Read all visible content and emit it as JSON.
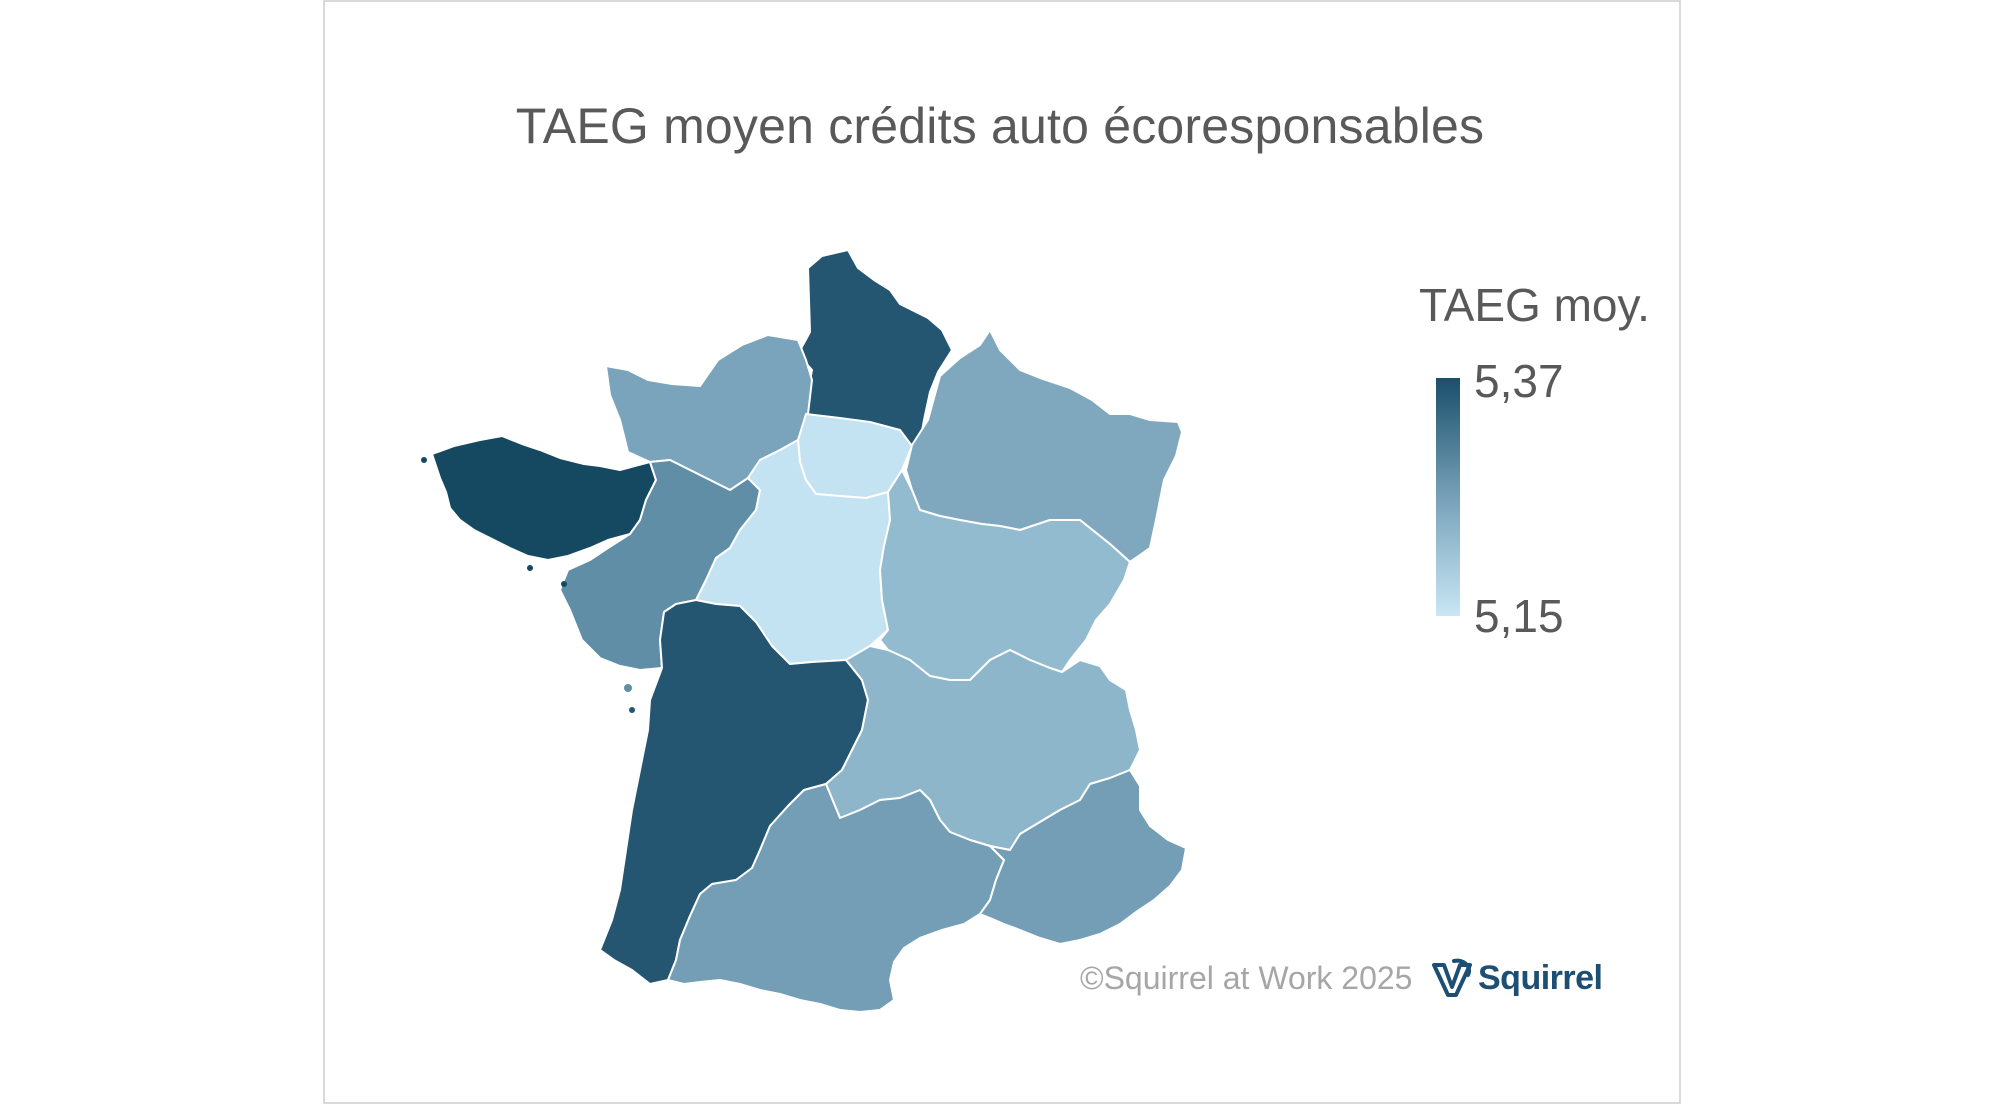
{
  "title": "TAEG moyen crédits auto écoresponsables",
  "legend": {
    "title": "TAEG moy.",
    "max_label": "5,37",
    "min_label": "5,15",
    "max_value": 5.37,
    "min_value": 5.15,
    "color_max": "#1b4f6b",
    "color_min": "#c9e6f4"
  },
  "credit": "©Squirrel at Work 2025",
  "brand": {
    "name": "Squirrel",
    "logo_icon": "squirrel-logo-icon",
    "color": "#1d4e73"
  },
  "map": {
    "regions": [
      {
        "name": "Hauts-de-France",
        "color": "#245672"
      },
      {
        "name": "Normandie",
        "color": "#7aa4bb"
      },
      {
        "name": "Île-de-France",
        "color": "#c3e2f2"
      },
      {
        "name": "Grand Est",
        "color": "#7fa8bf"
      },
      {
        "name": "Bretagne",
        "color": "#154962"
      },
      {
        "name": "Pays de la Loire",
        "color": "#5f8ea6"
      },
      {
        "name": "Centre-Val de Loire",
        "color": "#c3e2f2"
      },
      {
        "name": "Bourgogne-Franche-Comté",
        "color": "#93bbd0"
      },
      {
        "name": "Nouvelle-Aquitaine",
        "color": "#245672"
      },
      {
        "name": "Auvergne-Rhône-Alpes",
        "color": "#8eb6cb"
      },
      {
        "name": "Occitanie",
        "color": "#739eb5"
      },
      {
        "name": "Provence-Alpes-Côte d'Azur",
        "color": "#739eb5"
      }
    ]
  }
}
